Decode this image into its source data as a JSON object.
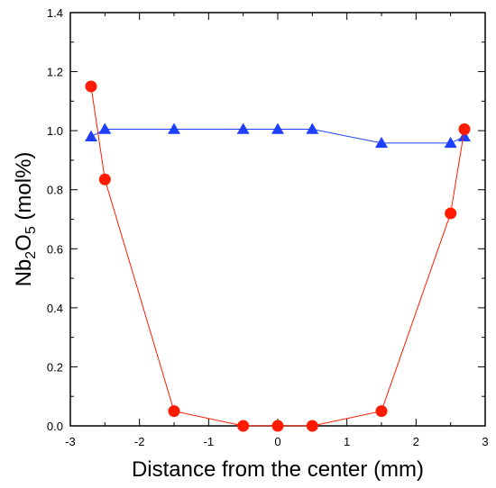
{
  "chart_data": {
    "type": "line",
    "title": "",
    "xlabel": "Distance from the center (mm)",
    "ylabel_parts": [
      "Nb",
      "2",
      "O",
      "5",
      " (mol%)"
    ],
    "xlim": [
      -3,
      3
    ],
    "ylim": [
      0,
      1.4
    ],
    "x_ticks": [
      -3,
      -2,
      -1,
      0,
      1,
      2,
      3
    ],
    "y_ticks": [
      0.0,
      0.2,
      0.4,
      0.6,
      0.8,
      1.0,
      1.2,
      1.4
    ],
    "x_tick_labels": [
      "-3",
      "-2",
      "-1",
      "0",
      "1",
      "2",
      "3"
    ],
    "y_tick_labels": [
      "0.0",
      "0.2",
      "0.4",
      "0.6",
      "0.8",
      "1.0",
      "1.2",
      "1.4"
    ],
    "grid": false,
    "legend": "none",
    "series": [
      {
        "marker": "triangle",
        "color": "#1f3fff",
        "x": [
          -2.7,
          -2.5,
          -1.5,
          -0.5,
          0,
          0.5,
          1.5,
          2.5,
          2.7
        ],
        "y": [
          0.98,
          1.005,
          1.005,
          1.005,
          1.005,
          1.005,
          0.958,
          0.958,
          0.98
        ]
      },
      {
        "marker": "circle",
        "color": "#ff1a00",
        "x": [
          -2.7,
          -2.5,
          -1.5,
          -0.5,
          0,
          0.5,
          1.5,
          2.5,
          2.7
        ],
        "y": [
          1.15,
          0.835,
          0.05,
          0.0,
          0.0,
          0.0,
          0.05,
          0.72,
          1.005
        ]
      }
    ]
  }
}
